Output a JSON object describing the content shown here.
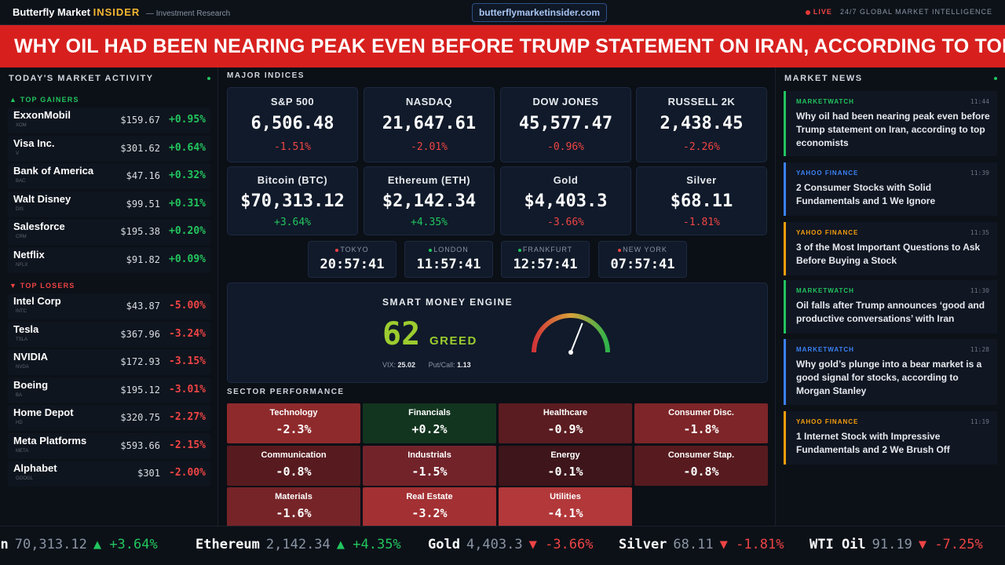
{
  "header": {
    "brand_main": "Butterfly Market",
    "brand_insider": "INSIDER",
    "brand_sub": "— Investment Research",
    "url": "butterflymarketinsider.com",
    "live_label": "LIVE",
    "live_text": "24/7 GLOBAL MARKET INTELLIGENCE"
  },
  "headline": "WHY OIL HAD BEEN NEARING PEAK EVEN BEFORE TRUMP STATEMENT ON IRAN, ACCORDING TO TOP",
  "market_activity": {
    "title": "TODAY'S MARKET ACTIVITY",
    "gainers_label": "▲ TOP GAINERS",
    "losers_label": "▼ TOP LOSERS",
    "gainers": [
      {
        "name": "ExxonMobil",
        "ticker": "XOM",
        "price": "$159.67",
        "change": "+0.95%"
      },
      {
        "name": "Visa Inc.",
        "ticker": "V",
        "price": "$301.62",
        "change": "+0.64%"
      },
      {
        "name": "Bank of America",
        "ticker": "BAC",
        "price": "$47.16",
        "change": "+0.32%"
      },
      {
        "name": "Walt Disney",
        "ticker": "DIS",
        "price": "$99.51",
        "change": "+0.31%"
      },
      {
        "name": "Salesforce",
        "ticker": "CRM",
        "price": "$195.38",
        "change": "+0.20%"
      },
      {
        "name": "Netflix",
        "ticker": "NFLX",
        "price": "$91.82",
        "change": "+0.09%"
      }
    ],
    "losers": [
      {
        "name": "Intel Corp",
        "ticker": "INTC",
        "price": "$43.87",
        "change": "-5.00%"
      },
      {
        "name": "Tesla",
        "ticker": "TSLA",
        "price": "$367.96",
        "change": "-3.24%"
      },
      {
        "name": "NVIDIA",
        "ticker": "NVDA",
        "price": "$172.93",
        "change": "-3.15%"
      },
      {
        "name": "Boeing",
        "ticker": "BA",
        "price": "$195.12",
        "change": "-3.01%"
      },
      {
        "name": "Home Depot",
        "ticker": "HD",
        "price": "$320.75",
        "change": "-2.27%"
      },
      {
        "name": "Meta Platforms",
        "ticker": "META",
        "price": "$593.66",
        "change": "-2.15%"
      },
      {
        "name": "Alphabet",
        "ticker": "GOOGL",
        "price": "$301",
        "change": "-2.00%"
      }
    ]
  },
  "indices": {
    "title": "MAJOR INDICES",
    "items": [
      {
        "label": "S&P 500",
        "value": "6,506.48",
        "change": "-1.51%",
        "direction": "down"
      },
      {
        "label": "NASDAQ",
        "value": "21,647.61",
        "change": "-2.01%",
        "direction": "down"
      },
      {
        "label": "DOW JONES",
        "value": "45,577.47",
        "change": "-0.96%",
        "direction": "down"
      },
      {
        "label": "RUSSELL 2K",
        "value": "2,438.45",
        "change": "-2.26%",
        "direction": "down"
      },
      {
        "label": "Bitcoin (BTC)",
        "value": "$70,313.12",
        "change": "+3.64%",
        "direction": "up"
      },
      {
        "label": "Ethereum (ETH)",
        "value": "$2,142.34",
        "change": "+4.35%",
        "direction": "up"
      },
      {
        "label": "Gold",
        "value": "$4,403.3",
        "change": "-3.66%",
        "direction": "down"
      },
      {
        "label": "Silver",
        "value": "$68.11",
        "change": "-1.81%",
        "direction": "down"
      }
    ]
  },
  "clocks": [
    {
      "city": "TOKYO",
      "time": "20:57:41",
      "dot_color": "#ef4444"
    },
    {
      "city": "LONDON",
      "time": "11:57:41",
      "dot_color": "#22c55e"
    },
    {
      "city": "FRANKFURT",
      "time": "12:57:41",
      "dot_color": "#22c55e"
    },
    {
      "city": "NEW YORK",
      "time": "07:57:41",
      "dot_color": "#ef4444"
    }
  ],
  "smart_money": {
    "title": "SMART MONEY ENGINE",
    "score": "62",
    "mood": "GREED",
    "vix_label": "VIX:",
    "vix": "25.02",
    "putcall_label": "Put/Call:",
    "putcall": "1.13",
    "gauge_value": 62
  },
  "sectors": {
    "title": "SECTOR PERFORMANCE",
    "items": [
      {
        "name": "Technology",
        "value": "-2.3%",
        "color": "#8e2a2c"
      },
      {
        "name": "Financials",
        "value": "+0.2%",
        "color": "#12351f"
      },
      {
        "name": "Healthcare",
        "value": "-0.9%",
        "color": "#5a1c20"
      },
      {
        "name": "Consumer Disc.",
        "value": "-1.8%",
        "color": "#7d2528"
      },
      {
        "name": "Communication",
        "value": "-0.8%",
        "color": "#571b1f"
      },
      {
        "name": "Industrials",
        "value": "-1.5%",
        "color": "#72232a"
      },
      {
        "name": "Energy",
        "value": "-0.1%",
        "color": "#3d151a"
      },
      {
        "name": "Consumer Stap.",
        "value": "-0.8%",
        "color": "#571b1f"
      },
      {
        "name": "Materials",
        "value": "-1.6%",
        "color": "#762428"
      },
      {
        "name": "Real Estate",
        "value": "-3.2%",
        "color": "#a33033"
      },
      {
        "name": "Utilities",
        "value": "-4.1%",
        "color": "#b2383a"
      }
    ]
  },
  "news": {
    "title": "MARKET NEWS",
    "items": [
      {
        "source": "MARKETWATCH",
        "time": "11:44",
        "text": "Why oil had been nearing peak even before Trump statement on Iran, according to top economists",
        "color": "#22c55e"
      },
      {
        "source": "YAHOO FINANCE",
        "time": "11:39",
        "text": "2 Consumer Stocks with Solid Fundamentals and 1 We Ignore",
        "color": "#3b82f6"
      },
      {
        "source": "YAHOO FINANCE",
        "time": "11:35",
        "text": "3 of the Most Important Questions to Ask Before Buying a Stock",
        "color": "#f59e0b"
      },
      {
        "source": "MARKETWATCH",
        "time": "11:30",
        "text": "Oil falls after Trump announces ‘good and productive conversations’ with Iran",
        "color": "#22c55e"
      },
      {
        "source": "MARKETWATCH",
        "time": "11:28",
        "text": "Why gold’s plunge into a bear market is a good signal for stocks, according to Morgan Stanley",
        "color": "#3b82f6"
      },
      {
        "source": "YAHOO FINANCE",
        "time": "11:19",
        "text": "1 Internet Stock with Impressive Fundamentals and 2 We Brush Off",
        "color": "#f59e0b"
      }
    ]
  },
  "ticker": [
    {
      "name": "oin",
      "price": "70,313.12",
      "change": "▲ +3.64%",
      "direction": "up"
    },
    {
      "name": "Ethereum",
      "price": "2,142.34",
      "change": "▲ +4.35%",
      "direction": "up"
    },
    {
      "name": "Gold",
      "price": "4,403.3",
      "change": "▼ -3.66%",
      "direction": "down"
    },
    {
      "name": "Silver",
      "price": "68.11",
      "change": "▼ -1.81%",
      "direction": "down"
    },
    {
      "name": "WTI Oil",
      "price": "91.19",
      "change": "▼ -7.25%",
      "direction": "down"
    }
  ],
  "colors": {
    "up": "#22c55e",
    "down": "#ef4444",
    "accent": "#f5b731",
    "headline_bg": "#d7201e"
  }
}
